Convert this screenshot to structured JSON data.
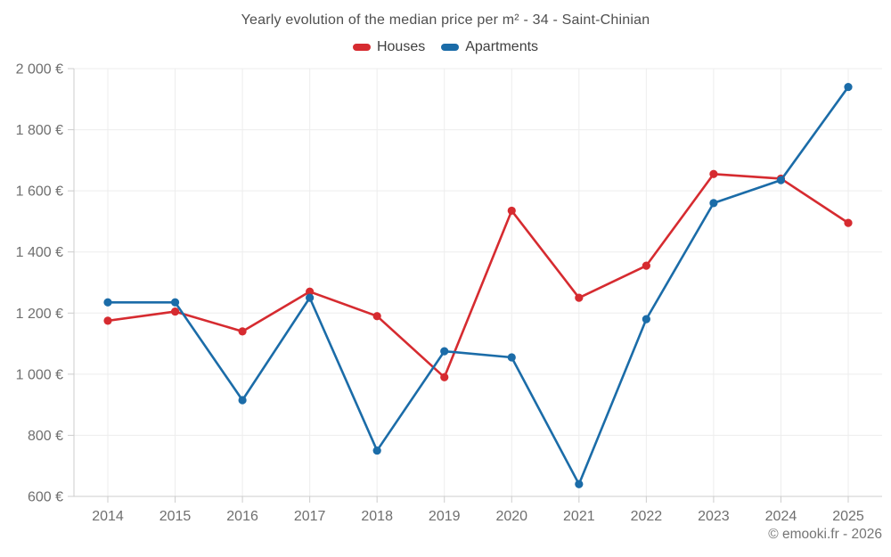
{
  "page": {
    "background": "#ffffff",
    "copyright": "© emooki.fr - 2026"
  },
  "chart_data": {
    "type": "line",
    "title": "Yearly evolution of the median price per m² - 34 - Saint-Chinian",
    "xlabel": "",
    "ylabel": "",
    "categories": [
      "2014",
      "2015",
      "2016",
      "2017",
      "2018",
      "2019",
      "2020",
      "2021",
      "2022",
      "2023",
      "2024",
      "2025"
    ],
    "series": [
      {
        "name": "Houses",
        "color": "#d62b30",
        "values": [
          1175,
          1205,
          1140,
          1270,
          1190,
          990,
          1535,
          1250,
          1355,
          1655,
          1640,
          1495
        ]
      },
      {
        "name": "Apartments",
        "color": "#1b6ca8",
        "values": [
          1235,
          1235,
          915,
          1250,
          750,
          1075,
          1055,
          640,
          1180,
          1560,
          1635,
          1940
        ]
      }
    ],
    "ylim": [
      600,
      2000
    ],
    "y_ticks": [
      600,
      800,
      1000,
      1200,
      1400,
      1600,
      1800,
      2000
    ],
    "y_tick_labels": [
      "600 €",
      "800 €",
      "1 000 €",
      "1 200 €",
      "1 400 €",
      "1 600 €",
      "1 800 €",
      "2 000 €"
    ],
    "grid": true,
    "legend_position": "top",
    "colors": {
      "grid_line": "#ededed",
      "axis_line": "#cccccc",
      "axis_text": "#6f6f6f",
      "title_text": "#4f4f4f"
    }
  }
}
